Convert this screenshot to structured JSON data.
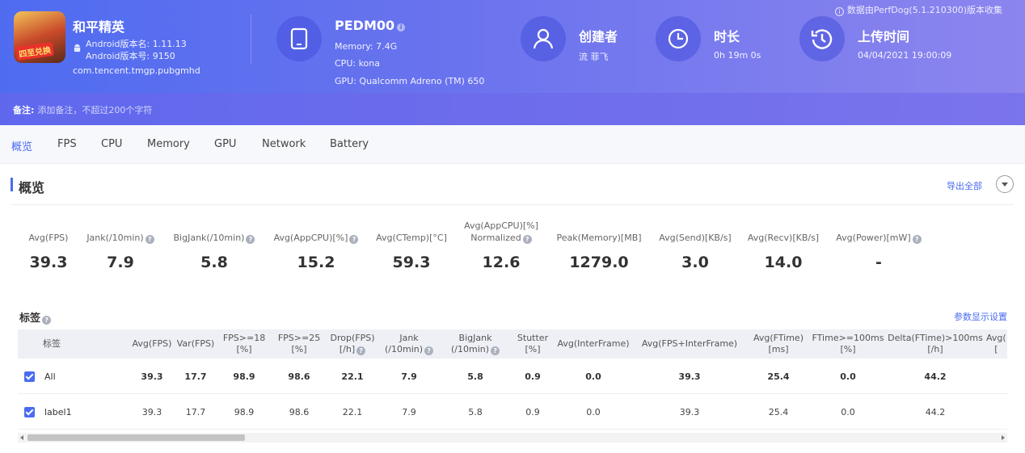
{
  "header": {
    "top_note": "数据由PerfDog(5.1.210300)版本收集",
    "app": {
      "name": "和平精英",
      "icon_badge": "四至兑换",
      "version_name": "Android版本名: 1.11.13",
      "version_code": "Android版本号: 9150",
      "package": "com.tencent.tmgp.pubgmhd"
    },
    "device": {
      "title": "PEDM00",
      "memory": "Memory: 7.4G",
      "cpu": "CPU: kona",
      "gpu": "GPU: Qualcomm Adreno (TM) 650"
    },
    "creator": {
      "title": "创建者",
      "value": "流 菲飞"
    },
    "duration": {
      "title": "时长",
      "value": "0h 19m 0s"
    },
    "upload": {
      "title": "上传时间",
      "value": "04/04/2021 19:00:09"
    },
    "note": {
      "label": "备注:",
      "placeholder": "添加备注，不超过200个字符"
    }
  },
  "tabs": [
    {
      "label": "概览",
      "active": true
    },
    {
      "label": "FPS"
    },
    {
      "label": "CPU"
    },
    {
      "label": "Memory"
    },
    {
      "label": "GPU"
    },
    {
      "label": "Network"
    },
    {
      "label": "Battery"
    }
  ],
  "overview": {
    "title": "概览",
    "export_label": "导出全部",
    "metrics": [
      {
        "label": "Avg(FPS)",
        "value": "39.3",
        "help": false
      },
      {
        "label": "Jank(/10min)",
        "value": "7.9",
        "help": true
      },
      {
        "label": "BigJank(/10min)",
        "value": "5.8",
        "help": true
      },
      {
        "label": "Avg(AppCPU)[%]",
        "value": "15.2",
        "help": true
      },
      {
        "label": "Avg(CTemp)[°C]",
        "value": "59.3",
        "help": false
      },
      {
        "label": "Avg(AppCPU)[%]",
        "label2": "Normalized",
        "value": "12.6",
        "help": true
      },
      {
        "label": "Peak(Memory)[MB]",
        "value": "1279.0",
        "help": false
      },
      {
        "label": "Avg(Send)[KB/s]",
        "value": "3.0",
        "help": false
      },
      {
        "label": "Avg(Recv)[KB/s]",
        "value": "14.0",
        "help": false
      },
      {
        "label": "Avg(Power)[mW]",
        "value": "-",
        "help": true
      }
    ]
  },
  "tags": {
    "title": "标签",
    "param_link": "参数显示设置",
    "columns": [
      {
        "l1": "标签",
        "l2": ""
      },
      {
        "l1": "Avg(FPS)",
        "l2": ""
      },
      {
        "l1": "Var(FPS)",
        "l2": ""
      },
      {
        "l1": "FPS>=18",
        "l2": "[%]"
      },
      {
        "l1": "FPS>=25",
        "l2": "[%]"
      },
      {
        "l1": "Drop(FPS)",
        "l2": "[/h]"
      },
      {
        "l1": "Jank",
        "l2": "(/10min)"
      },
      {
        "l1": "BigJank",
        "l2": "(/10min)"
      },
      {
        "l1": "Stutter",
        "l2": "[%]"
      },
      {
        "l1": "Avg(InterFrame)",
        "l2": ""
      },
      {
        "l1": "Avg(FPS+InterFrame)",
        "l2": ""
      },
      {
        "l1": "Avg(FTime)",
        "l2": "[ms]"
      },
      {
        "l1": "FTime>=100ms",
        "l2": "[%]"
      },
      {
        "l1": "Delta(FTime)>100ms",
        "l2": "[/h]"
      },
      {
        "l1": "Avg(",
        "l2": "["
      }
    ],
    "rows": [
      {
        "label": "All",
        "checked": true,
        "bold": true,
        "cells": [
          "39.3",
          "17.7",
          "98.9",
          "98.6",
          "22.1",
          "7.9",
          "5.8",
          "0.9",
          "0.0",
          "39.3",
          "25.4",
          "0.0",
          "44.2"
        ]
      },
      {
        "label": "label1",
        "checked": true,
        "bold": false,
        "cells": [
          "39.3",
          "17.7",
          "98.9",
          "98.6",
          "22.1",
          "7.9",
          "5.8",
          "0.9",
          "0.0",
          "39.3",
          "25.4",
          "0.0",
          "44.2"
        ]
      }
    ]
  }
}
